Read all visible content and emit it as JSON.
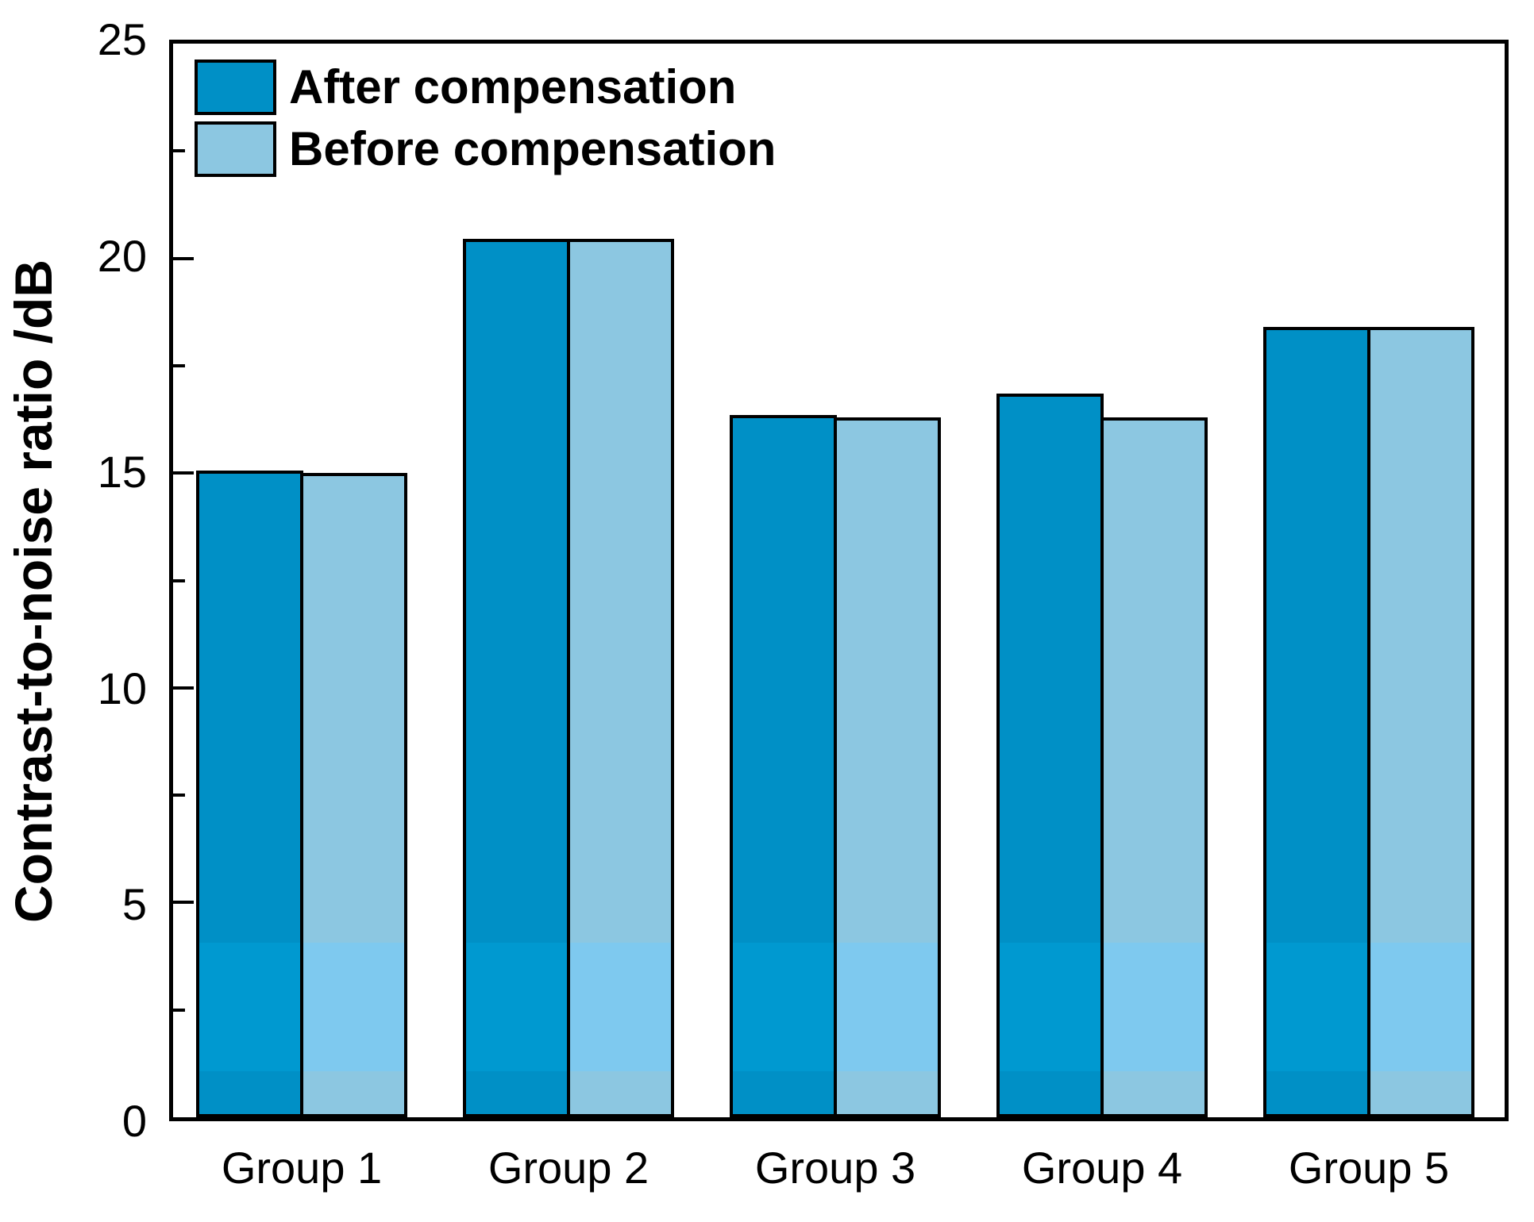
{
  "chart_data": {
    "type": "bar",
    "title": "",
    "xlabel": "",
    "ylabel": "Contrast-to-noise ratio /dB",
    "categories": [
      "Group 1",
      "Group 2",
      "Group 3",
      "Group 4",
      "Group 5"
    ],
    "series": [
      {
        "name": "After compensation",
        "values": [
          15.05,
          20.45,
          16.35,
          16.85,
          18.4
        ],
        "color": "#0090c6",
        "band_color": "#0099d0"
      },
      {
        "name": "Before compensation",
        "values": [
          15.0,
          20.45,
          16.3,
          16.3,
          18.4
        ],
        "color": "#8cc7e1",
        "band_color": "#7ec9ef"
      }
    ],
    "ylim": [
      0,
      25
    ],
    "y_major_ticks": [
      "0",
      "5",
      "10",
      "15",
      "20",
      "25"
    ],
    "y_major_step": 5,
    "y_minor_step": 2.5,
    "grid": false,
    "legend_position": "top-left",
    "bar_outline": "#000000",
    "band_range_dB": [
      1,
      4
    ]
  }
}
